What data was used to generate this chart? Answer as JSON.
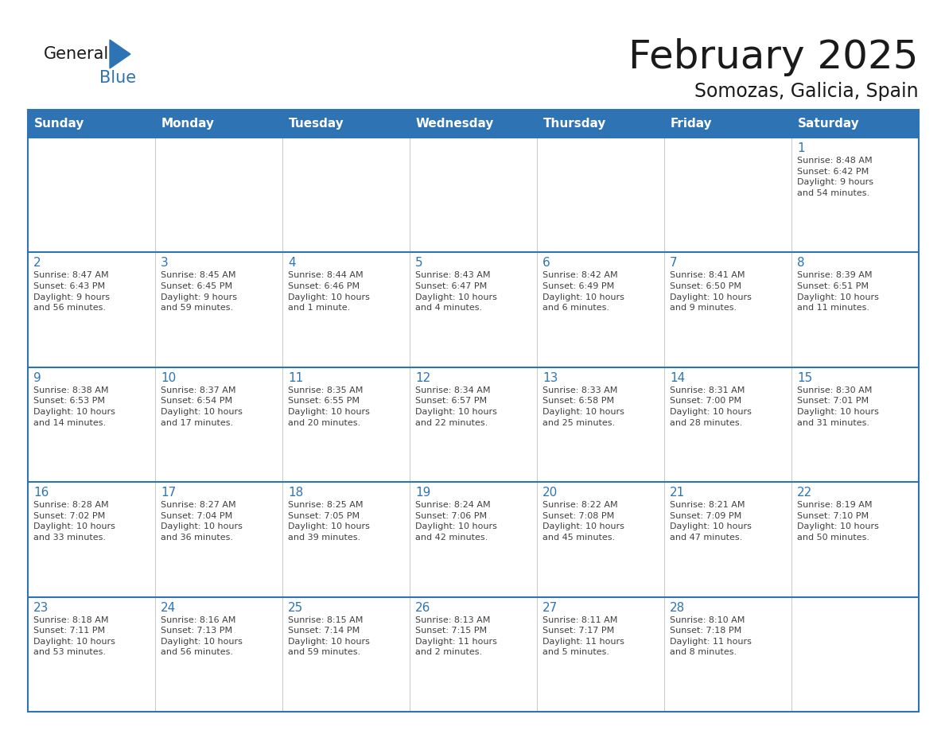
{
  "title": "February 2025",
  "subtitle": "Somozas, Galicia, Spain",
  "header_color": "#2e74b5",
  "header_text_color": "#ffffff",
  "cell_bg_color": "#ffffff",
  "row_border_color": "#2e74b5",
  "col_border_color": "#c0c0c0",
  "day_number_color": "#2e74b5",
  "text_color": "#404040",
  "days_of_week": [
    "Sunday",
    "Monday",
    "Tuesday",
    "Wednesday",
    "Thursday",
    "Friday",
    "Saturday"
  ],
  "calendar": [
    [
      {
        "day": "",
        "info": ""
      },
      {
        "day": "",
        "info": ""
      },
      {
        "day": "",
        "info": ""
      },
      {
        "day": "",
        "info": ""
      },
      {
        "day": "",
        "info": ""
      },
      {
        "day": "",
        "info": ""
      },
      {
        "day": "1",
        "info": "Sunrise: 8:48 AM\nSunset: 6:42 PM\nDaylight: 9 hours\nand 54 minutes."
      }
    ],
    [
      {
        "day": "2",
        "info": "Sunrise: 8:47 AM\nSunset: 6:43 PM\nDaylight: 9 hours\nand 56 minutes."
      },
      {
        "day": "3",
        "info": "Sunrise: 8:45 AM\nSunset: 6:45 PM\nDaylight: 9 hours\nand 59 minutes."
      },
      {
        "day": "4",
        "info": "Sunrise: 8:44 AM\nSunset: 6:46 PM\nDaylight: 10 hours\nand 1 minute."
      },
      {
        "day": "5",
        "info": "Sunrise: 8:43 AM\nSunset: 6:47 PM\nDaylight: 10 hours\nand 4 minutes."
      },
      {
        "day": "6",
        "info": "Sunrise: 8:42 AM\nSunset: 6:49 PM\nDaylight: 10 hours\nand 6 minutes."
      },
      {
        "day": "7",
        "info": "Sunrise: 8:41 AM\nSunset: 6:50 PM\nDaylight: 10 hours\nand 9 minutes."
      },
      {
        "day": "8",
        "info": "Sunrise: 8:39 AM\nSunset: 6:51 PM\nDaylight: 10 hours\nand 11 minutes."
      }
    ],
    [
      {
        "day": "9",
        "info": "Sunrise: 8:38 AM\nSunset: 6:53 PM\nDaylight: 10 hours\nand 14 minutes."
      },
      {
        "day": "10",
        "info": "Sunrise: 8:37 AM\nSunset: 6:54 PM\nDaylight: 10 hours\nand 17 minutes."
      },
      {
        "day": "11",
        "info": "Sunrise: 8:35 AM\nSunset: 6:55 PM\nDaylight: 10 hours\nand 20 minutes."
      },
      {
        "day": "12",
        "info": "Sunrise: 8:34 AM\nSunset: 6:57 PM\nDaylight: 10 hours\nand 22 minutes."
      },
      {
        "day": "13",
        "info": "Sunrise: 8:33 AM\nSunset: 6:58 PM\nDaylight: 10 hours\nand 25 minutes."
      },
      {
        "day": "14",
        "info": "Sunrise: 8:31 AM\nSunset: 7:00 PM\nDaylight: 10 hours\nand 28 minutes."
      },
      {
        "day": "15",
        "info": "Sunrise: 8:30 AM\nSunset: 7:01 PM\nDaylight: 10 hours\nand 31 minutes."
      }
    ],
    [
      {
        "day": "16",
        "info": "Sunrise: 8:28 AM\nSunset: 7:02 PM\nDaylight: 10 hours\nand 33 minutes."
      },
      {
        "day": "17",
        "info": "Sunrise: 8:27 AM\nSunset: 7:04 PM\nDaylight: 10 hours\nand 36 minutes."
      },
      {
        "day": "18",
        "info": "Sunrise: 8:25 AM\nSunset: 7:05 PM\nDaylight: 10 hours\nand 39 minutes."
      },
      {
        "day": "19",
        "info": "Sunrise: 8:24 AM\nSunset: 7:06 PM\nDaylight: 10 hours\nand 42 minutes."
      },
      {
        "day": "20",
        "info": "Sunrise: 8:22 AM\nSunset: 7:08 PM\nDaylight: 10 hours\nand 45 minutes."
      },
      {
        "day": "21",
        "info": "Sunrise: 8:21 AM\nSunset: 7:09 PM\nDaylight: 10 hours\nand 47 minutes."
      },
      {
        "day": "22",
        "info": "Sunrise: 8:19 AM\nSunset: 7:10 PM\nDaylight: 10 hours\nand 50 minutes."
      }
    ],
    [
      {
        "day": "23",
        "info": "Sunrise: 8:18 AM\nSunset: 7:11 PM\nDaylight: 10 hours\nand 53 minutes."
      },
      {
        "day": "24",
        "info": "Sunrise: 8:16 AM\nSunset: 7:13 PM\nDaylight: 10 hours\nand 56 minutes."
      },
      {
        "day": "25",
        "info": "Sunrise: 8:15 AM\nSunset: 7:14 PM\nDaylight: 10 hours\nand 59 minutes."
      },
      {
        "day": "26",
        "info": "Sunrise: 8:13 AM\nSunset: 7:15 PM\nDaylight: 11 hours\nand 2 minutes."
      },
      {
        "day": "27",
        "info": "Sunrise: 8:11 AM\nSunset: 7:17 PM\nDaylight: 11 hours\nand 5 minutes."
      },
      {
        "day": "28",
        "info": "Sunrise: 8:10 AM\nSunset: 7:18 PM\nDaylight: 11 hours\nand 8 minutes."
      },
      {
        "day": "",
        "info": ""
      }
    ]
  ],
  "logo_text_general": "General",
  "logo_text_blue": "Blue",
  "logo_color_general": "#1a1a1a",
  "logo_color_blue": "#2e74b5",
  "logo_triangle_color": "#2e74b5",
  "title_fontsize": 36,
  "subtitle_fontsize": 17,
  "header_fontsize": 11,
  "day_num_fontsize": 11,
  "info_fontsize": 8
}
